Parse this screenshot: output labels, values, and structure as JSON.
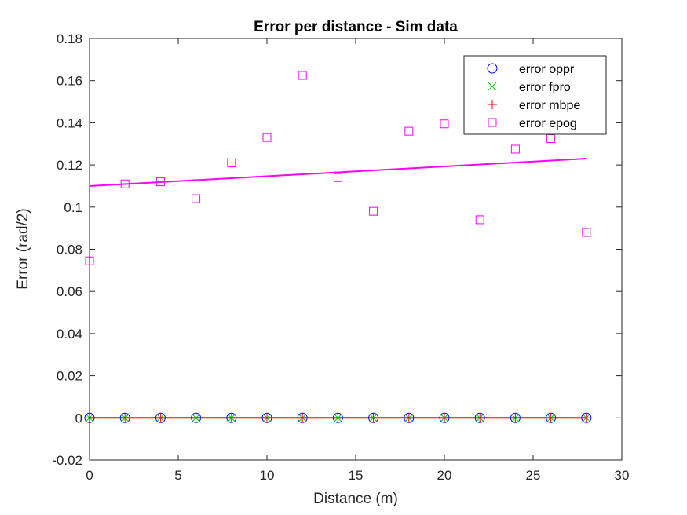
{
  "chart_data": {
    "type": "scatter",
    "title": "Error per distance  - Sim data",
    "xlabel": "Distance (m)",
    "ylabel": "Error (rad/2)",
    "xlim": [
      0,
      30
    ],
    "ylim": [
      -0.02,
      0.18
    ],
    "xticks": [
      0,
      5,
      10,
      15,
      20,
      25,
      30
    ],
    "xtick_labels": [
      "0",
      "5",
      "10",
      "15",
      "20",
      "25",
      "30"
    ],
    "yticks": [
      -0.02,
      0,
      0.02,
      0.04,
      0.06,
      0.08,
      0.1,
      0.12,
      0.14,
      0.16,
      0.18
    ],
    "ytick_labels": [
      "-0.02",
      "0",
      "0.02",
      "0.04",
      "0.06",
      "0.08",
      "0.1",
      "0.12",
      "0.14",
      "0.16",
      "0.18"
    ],
    "grid": false,
    "legend_position": "top-right",
    "x": [
      0,
      2,
      4,
      6,
      8,
      10,
      12,
      14,
      16,
      18,
      20,
      22,
      24,
      26,
      28
    ],
    "series": [
      {
        "name": "error oppr",
        "marker": "circle",
        "color": "#0000ff",
        "values": [
          0,
          0,
          0,
          0,
          0,
          0,
          0,
          0,
          0,
          0,
          0,
          0,
          0,
          0,
          0
        ]
      },
      {
        "name": "error fpro",
        "marker": "x",
        "color": "#00cc00",
        "values": [
          0,
          0,
          0,
          0,
          0,
          0,
          0,
          0,
          0,
          0,
          0,
          0,
          0,
          0,
          0
        ]
      },
      {
        "name": "error mbpe",
        "marker": "plus",
        "color": "#ff0000",
        "values": [
          0,
          0,
          0,
          0,
          0,
          0,
          0,
          0,
          0,
          0,
          0,
          0,
          0,
          0,
          0
        ]
      },
      {
        "name": "error epog",
        "marker": "square",
        "color": "#ff00ff",
        "values": [
          0.0745,
          0.111,
          0.112,
          0.104,
          0.121,
          0.133,
          0.1625,
          0.114,
          0.098,
          0.136,
          0.1395,
          0.094,
          0.1275,
          0.1325,
          0.088
        ]
      }
    ],
    "fit_lines": [
      {
        "color": "#ff00ff",
        "x": [
          0,
          28
        ],
        "y": [
          0.11,
          0.123
        ]
      },
      {
        "color": "#ff0000",
        "x": [
          0,
          28
        ],
        "y": [
          0.0,
          0.0
        ]
      }
    ]
  }
}
